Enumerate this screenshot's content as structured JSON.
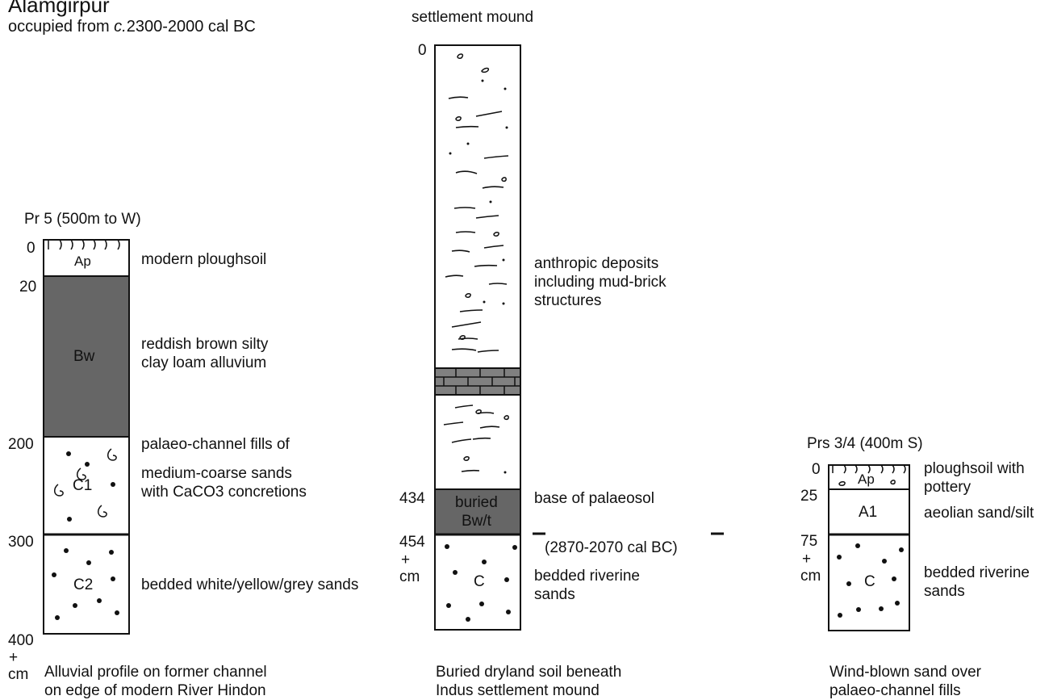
{
  "header": {
    "site": "Alamgirpur",
    "occupied_prefix": "occupied from ",
    "occupied_circa": "c.",
    "occupied_suffix": "2300-2000 cal BC"
  },
  "profile_pr5": {
    "heading": "Pr 5 (500m to W)",
    "depths": [
      "0",
      "20",
      "200",
      "300",
      "400",
      "+",
      "cm"
    ],
    "horizons": [
      "Ap",
      "Bw",
      "C1",
      "C2"
    ],
    "descriptions": [
      "modern ploughsoil",
      "reddish brown silty\nclay loam alluvium",
      "palaeo-channel fills of",
      "medium-coarse sands\nwith CaCO3 concretions",
      "bedded white/yellow/grey sands"
    ],
    "caption": "Alluvial profile on former channel\non edge of modern River Hindon"
  },
  "profile_mound": {
    "heading": "settlement mound",
    "depths": [
      "0",
      "434",
      "454",
      "+",
      "cm"
    ],
    "horizons": [
      "buried\nBw/t",
      "C"
    ],
    "descriptions": [
      "anthropic deposits\nincluding mud-brick\nstructures",
      "base of palaeosol",
      "(2870-2070 cal BC)",
      "bedded riverine\nsands"
    ],
    "caption": "Buried dryland soil beneath\nIndus settlement mound"
  },
  "profile_prs34": {
    "heading": "Prs 3/4 (400m S)",
    "depths": [
      "0",
      "25",
      "75",
      "+",
      "cm"
    ],
    "horizons": [
      "Ap",
      "A1",
      "C"
    ],
    "descriptions": [
      "ploughsoil with\npottery",
      "aeolian sand/silt",
      "bedded riverine\nsands"
    ],
    "caption": "Wind-blown sand over\npalaeo-channel fills"
  },
  "colors": {
    "dark_fill": "#666666",
    "brick_fill": "#808080",
    "line": "#111111"
  }
}
